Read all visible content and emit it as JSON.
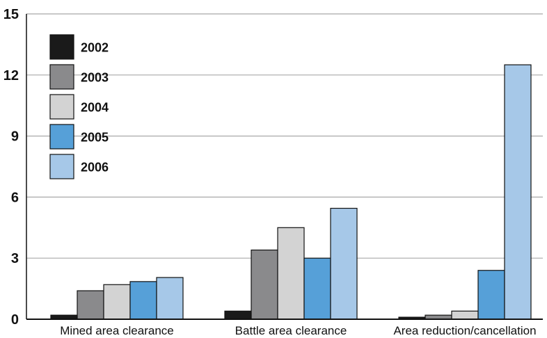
{
  "chart_data": {
    "type": "bar",
    "categories": [
      "Mined area clearance",
      "Battle area clearance",
      "Area reduction/cancellation"
    ],
    "series": [
      {
        "name": "2002",
        "color": "#1a1a1a",
        "values": [
          0.2,
          0.4,
          0.1
        ]
      },
      {
        "name": "2003",
        "color": "#8a8a8c",
        "values": [
          1.4,
          3.4,
          0.2
        ]
      },
      {
        "name": "2004",
        "color": "#d3d3d3",
        "values": [
          1.7,
          4.5,
          0.4
        ]
      },
      {
        "name": "2005",
        "color": "#56a0d8",
        "values": [
          1.85,
          3.0,
          2.4
        ]
      },
      {
        "name": "2006",
        "color": "#a6c8e8",
        "values": [
          2.05,
          5.45,
          12.5
        ]
      }
    ],
    "y_ticks": [
      "0",
      "3",
      "6",
      "9",
      "12",
      "15"
    ],
    "ylim": [
      0,
      15
    ],
    "title": "",
    "xlabel": "",
    "ylabel": "",
    "grid": true,
    "legend_position": "top-left"
  }
}
